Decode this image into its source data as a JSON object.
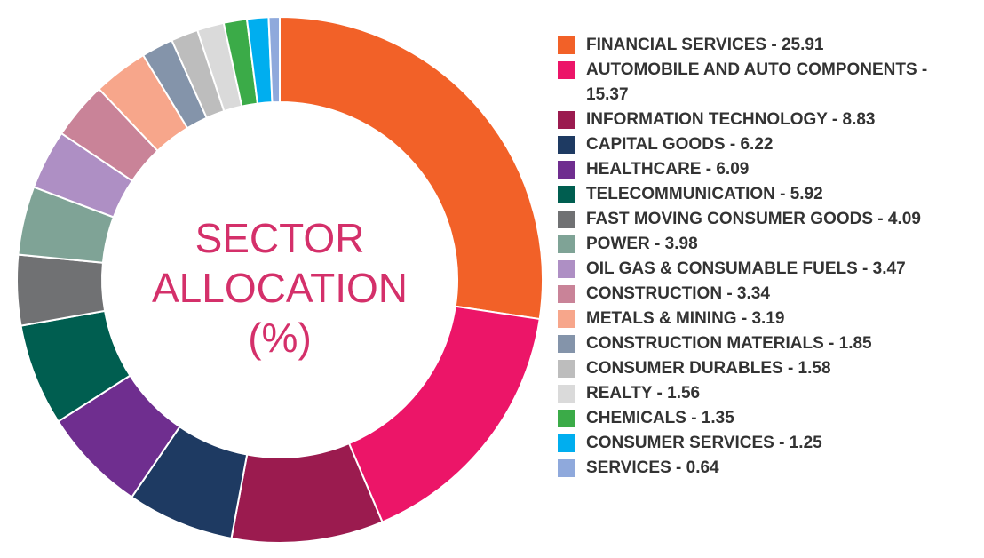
{
  "chart_data": {
    "type": "donut",
    "title": "SECTOR ALLOCATION (%)",
    "categories": [
      "FINANCIAL SERVICES - 25.91",
      "AUTOMOBILE AND AUTO COMPONENTS - 15.37",
      "INFORMATION TECHNOLOGY - 8.83",
      "CAPITAL GOODS - 6.22",
      "HEALTHCARE - 6.09",
      "TELECOMMUNICATION - 5.92",
      "FAST MOVING CONSUMER GOODS - 4.09",
      "POWER - 3.98",
      "OIL GAS & CONSUMABLE FUELS - 3.47",
      "CONSTRUCTION - 3.34",
      "METALS & MINING - 3.19",
      "CONSTRUCTION MATERIALS - 1.85",
      "CONSUMER DURABLES - 1.58",
      "REALTY  - 1.56",
      "CHEMICALS  - 1.35",
      "CONSUMER SERVICES  - 1.25",
      "SERVICES  - 0.64"
    ],
    "values": [
      25.91,
      15.37,
      8.83,
      6.22,
      6.09,
      5.92,
      4.09,
      3.98,
      3.47,
      3.34,
      3.19,
      1.85,
      1.58,
      1.56,
      1.35,
      1.25,
      0.64
    ],
    "colors": [
      "#f26128",
      "#ec1568",
      "#9b1b4f",
      "#1e3a62",
      "#6f2e8f",
      "#005e50",
      "#707173",
      "#7fa396",
      "#ae8fc4",
      "#c98398",
      "#f7a68b",
      "#8494aa",
      "#bdbdbd",
      "#dadada",
      "#3bab48",
      "#00aeef",
      "#8fa9dc"
    ],
    "legend": "right"
  }
}
